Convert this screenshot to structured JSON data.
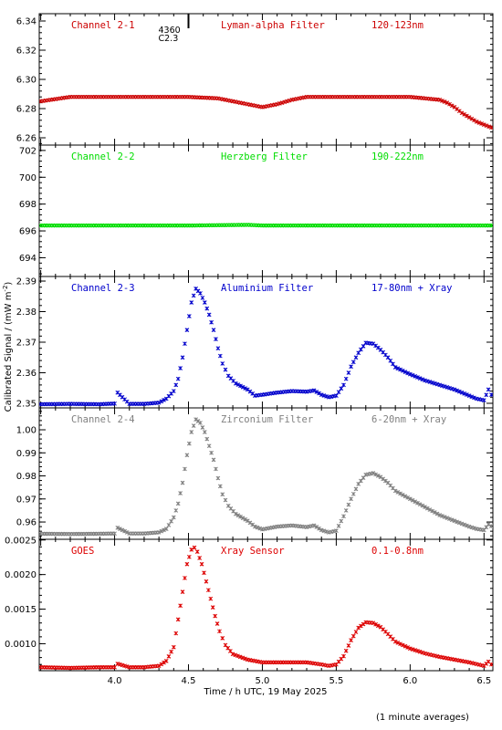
{
  "figure": {
    "ylabel": "Calibrated Signal / (mW m",
    "ylabel_sup": "-2",
    "ylabel_close": ")",
    "xlabel": "Time / h UTC, 19 May 2025",
    "footnote": "(1 minute averages)",
    "flare_marker": {
      "x": 4.5,
      "labels": [
        "4360",
        "C2.3"
      ]
    }
  },
  "chart_data": [
    {
      "type": "scatter",
      "channel": "Channel 2-1",
      "filter": "Lyman-alpha Filter",
      "band": "120-123nm",
      "color": "#cc0000",
      "ylim": [
        6.255,
        6.345
      ],
      "yticks": [
        6.26,
        6.28,
        6.3,
        6.32,
        6.34
      ],
      "ytick_labels": [
        "6.26",
        "6.28",
        "6.30",
        "6.32",
        "6.34"
      ],
      "points": [
        [
          3.5,
          6.285
        ],
        [
          3.7,
          6.288
        ],
        [
          3.9,
          6.288
        ],
        [
          4.1,
          6.288
        ],
        [
          4.3,
          6.288
        ],
        [
          4.5,
          6.288
        ],
        [
          4.7,
          6.287
        ],
        [
          4.8,
          6.285
        ],
        [
          4.9,
          6.283
        ],
        [
          5.0,
          6.281
        ],
        [
          5.1,
          6.283
        ],
        [
          5.2,
          6.286
        ],
        [
          5.3,
          6.288
        ],
        [
          5.4,
          6.288
        ],
        [
          5.6,
          6.288
        ],
        [
          5.8,
          6.288
        ],
        [
          5.9,
          6.288
        ],
        [
          6.0,
          6.288
        ],
        [
          6.1,
          6.287
        ],
        [
          6.2,
          6.286
        ],
        [
          6.25,
          6.284
        ],
        [
          6.3,
          6.281
        ],
        [
          6.35,
          6.277
        ],
        [
          6.4,
          6.274
        ],
        [
          6.45,
          6.271
        ],
        [
          6.5,
          6.269
        ],
        [
          6.55,
          6.267
        ]
      ]
    },
    {
      "type": "scatter",
      "channel": "Channel 2-2",
      "filter": "Herzberg Filter",
      "band": "190-222nm",
      "color": "#00dd00",
      "ylim": [
        692.6,
        702.4
      ],
      "yticks": [
        694,
        696,
        698,
        700,
        702
      ],
      "ytick_labels": [
        "694",
        "696",
        "698",
        "700",
        "702"
      ],
      "points": [
        [
          3.5,
          696.4
        ],
        [
          4.0,
          696.4
        ],
        [
          4.5,
          696.4
        ],
        [
          4.9,
          696.45
        ],
        [
          5.0,
          696.4
        ],
        [
          5.5,
          696.4
        ],
        [
          6.0,
          696.4
        ],
        [
          6.55,
          696.4
        ]
      ]
    },
    {
      "type": "scatter",
      "channel": "Channel 2-3",
      "filter": "Aluminium Filter",
      "band": "17-80nm + Xray",
      "color": "#0000cc",
      "ylim": [
        2.3485,
        2.3915
      ],
      "yticks": [
        2.35,
        2.36,
        2.37,
        2.38,
        2.39
      ],
      "ytick_labels": [
        "2.35",
        "2.36",
        "2.37",
        "2.38",
        "2.39"
      ],
      "points": [
        [
          3.5,
          2.3497
        ],
        [
          3.7,
          2.3498
        ],
        [
          3.9,
          2.3497
        ],
        [
          4.0,
          2.3499
        ],
        [
          4.02,
          2.3535
        ],
        [
          4.1,
          2.3498
        ],
        [
          4.2,
          2.3498
        ],
        [
          4.3,
          2.3502
        ],
        [
          4.35,
          2.3515
        ],
        [
          4.4,
          2.354
        ],
        [
          4.43,
          2.358
        ],
        [
          4.46,
          2.365
        ],
        [
          4.49,
          2.374
        ],
        [
          4.52,
          2.383
        ],
        [
          4.55,
          2.3875
        ],
        [
          4.58,
          2.386
        ],
        [
          4.61,
          2.383
        ],
        [
          4.64,
          2.379
        ],
        [
          4.67,
          2.374
        ],
        [
          4.7,
          2.368
        ],
        [
          4.73,
          2.363
        ],
        [
          4.77,
          2.359
        ],
        [
          4.82,
          2.3565
        ],
        [
          4.9,
          2.3545
        ],
        [
          4.95,
          2.3525
        ],
        [
          5.0,
          2.3528
        ],
        [
          5.1,
          2.3535
        ],
        [
          5.2,
          2.354
        ],
        [
          5.3,
          2.3538
        ],
        [
          5.35,
          2.3542
        ],
        [
          5.4,
          2.3528
        ],
        [
          5.45,
          2.352
        ],
        [
          5.5,
          2.3525
        ],
        [
          5.55,
          2.356
        ],
        [
          5.6,
          2.362
        ],
        [
          5.65,
          2.3665
        ],
        [
          5.7,
          2.3698
        ],
        [
          5.75,
          2.3695
        ],
        [
          5.8,
          2.3675
        ],
        [
          5.85,
          2.365
        ],
        [
          5.9,
          2.3618
        ],
        [
          6.0,
          2.3595
        ],
        [
          6.1,
          2.3575
        ],
        [
          6.2,
          2.356
        ],
        [
          6.3,
          2.3545
        ],
        [
          6.4,
          2.3525
        ],
        [
          6.45,
          2.3515
        ],
        [
          6.5,
          2.351
        ],
        [
          6.53,
          2.3545
        ],
        [
          6.55,
          2.3528
        ]
      ]
    },
    {
      "type": "scatter",
      "channel": "Channel 2-4",
      "filter": "Zirconium Filter",
      "band": "6-20nm + Xray",
      "color": "#808080",
      "ylim": [
        0.9525,
        1.0095
      ],
      "yticks": [
        0.96,
        0.97,
        0.98,
        0.99,
        1.0
      ],
      "ytick_labels": [
        "0.96",
        "0.97",
        "0.98",
        "0.99",
        "1.00"
      ],
      "points": [
        [
          3.5,
          0.9549
        ],
        [
          3.7,
          0.9548
        ],
        [
          3.9,
          0.9549
        ],
        [
          4.0,
          0.955
        ],
        [
          4.02,
          0.9575
        ],
        [
          4.1,
          0.955
        ],
        [
          4.2,
          0.955
        ],
        [
          4.3,
          0.9555
        ],
        [
          4.35,
          0.957
        ],
        [
          4.4,
          0.962
        ],
        [
          4.43,
          0.968
        ],
        [
          4.46,
          0.977
        ],
        [
          4.49,
          0.989
        ],
        [
          4.52,
          0.999
        ],
        [
          4.55,
          1.0045
        ],
        [
          4.58,
          1.003
        ],
        [
          4.61,
          0.999
        ],
        [
          4.64,
          0.993
        ],
        [
          4.67,
          0.987
        ],
        [
          4.7,
          0.979
        ],
        [
          4.73,
          0.972
        ],
        [
          4.77,
          0.967
        ],
        [
          4.82,
          0.9635
        ],
        [
          4.9,
          0.9605
        ],
        [
          4.95,
          0.958
        ],
        [
          5.0,
          0.9568
        ],
        [
          5.1,
          0.958
        ],
        [
          5.2,
          0.9585
        ],
        [
          5.3,
          0.9578
        ],
        [
          5.35,
          0.9585
        ],
        [
          5.4,
          0.9565
        ],
        [
          5.45,
          0.9555
        ],
        [
          5.5,
          0.9562
        ],
        [
          5.55,
          0.9625
        ],
        [
          5.6,
          0.97
        ],
        [
          5.65,
          0.9765
        ],
        [
          5.7,
          0.9805
        ],
        [
          5.75,
          0.9812
        ],
        [
          5.8,
          0.9795
        ],
        [
          5.85,
          0.977
        ],
        [
          5.9,
          0.9735
        ],
        [
          6.0,
          0.97
        ],
        [
          6.1,
          0.9665
        ],
        [
          6.2,
          0.963
        ],
        [
          6.3,
          0.9605
        ],
        [
          6.4,
          0.958
        ],
        [
          6.45,
          0.957
        ],
        [
          6.5,
          0.9565
        ],
        [
          6.53,
          0.959
        ],
        [
          6.55,
          0.9582
        ]
      ]
    },
    {
      "type": "scatter",
      "channel": "GOES",
      "filter": "Xray Sensor",
      "band": "0.1-0.8nm",
      "color": "#dd0000",
      "ylim": [
        0.00061,
        0.00251
      ],
      "yticks": [
        0.001,
        0.0015,
        0.002,
        0.0025
      ],
      "ytick_labels": [
        "0.0010",
        "0.0015",
        "0.0020",
        "0.0025"
      ],
      "points": [
        [
          3.5,
          0.00066
        ],
        [
          3.7,
          0.00065
        ],
        [
          3.9,
          0.00066
        ],
        [
          4.0,
          0.00066
        ],
        [
          4.02,
          0.00071
        ],
        [
          4.1,
          0.00066
        ],
        [
          4.2,
          0.00066
        ],
        [
          4.3,
          0.00068
        ],
        [
          4.35,
          0.00075
        ],
        [
          4.4,
          0.00095
        ],
        [
          4.43,
          0.00135
        ],
        [
          4.46,
          0.00175
        ],
        [
          4.49,
          0.00215
        ],
        [
          4.52,
          0.00236
        ],
        [
          4.54,
          0.00239
        ],
        [
          4.56,
          0.00233
        ],
        [
          4.59,
          0.00215
        ],
        [
          4.62,
          0.0019
        ],
        [
          4.65,
          0.00165
        ],
        [
          4.68,
          0.0014
        ],
        [
          4.71,
          0.00118
        ],
        [
          4.75,
          0.00098
        ],
        [
          4.8,
          0.00085
        ],
        [
          4.9,
          0.00077
        ],
        [
          5.0,
          0.00073
        ],
        [
          5.1,
          0.00073
        ],
        [
          5.2,
          0.00073
        ],
        [
          5.3,
          0.00073
        ],
        [
          5.4,
          0.0007
        ],
        [
          5.45,
          0.00068
        ],
        [
          5.5,
          0.0007
        ],
        [
          5.55,
          0.00082
        ],
        [
          5.6,
          0.00105
        ],
        [
          5.65,
          0.00123
        ],
        [
          5.7,
          0.00131
        ],
        [
          5.75,
          0.0013
        ],
        [
          5.8,
          0.00124
        ],
        [
          5.85,
          0.00114
        ],
        [
          5.9,
          0.00103
        ],
        [
          6.0,
          0.00093
        ],
        [
          6.1,
          0.00086
        ],
        [
          6.2,
          0.00081
        ],
        [
          6.3,
          0.00077
        ],
        [
          6.4,
          0.00073
        ],
        [
          6.5,
          0.00068
        ],
        [
          6.53,
          0.00074
        ],
        [
          6.55,
          0.0007
        ]
      ]
    }
  ],
  "xaxis": {
    "xlim": [
      3.49,
      6.56
    ],
    "ticks": [
      4.0,
      4.5,
      5.0,
      5.5,
      6.0,
      6.5
    ],
    "tick_labels": [
      "4.0",
      "4.5",
      "5.0",
      "5.5",
      "6.0",
      "6.5"
    ],
    "minor_step": 0.1
  }
}
